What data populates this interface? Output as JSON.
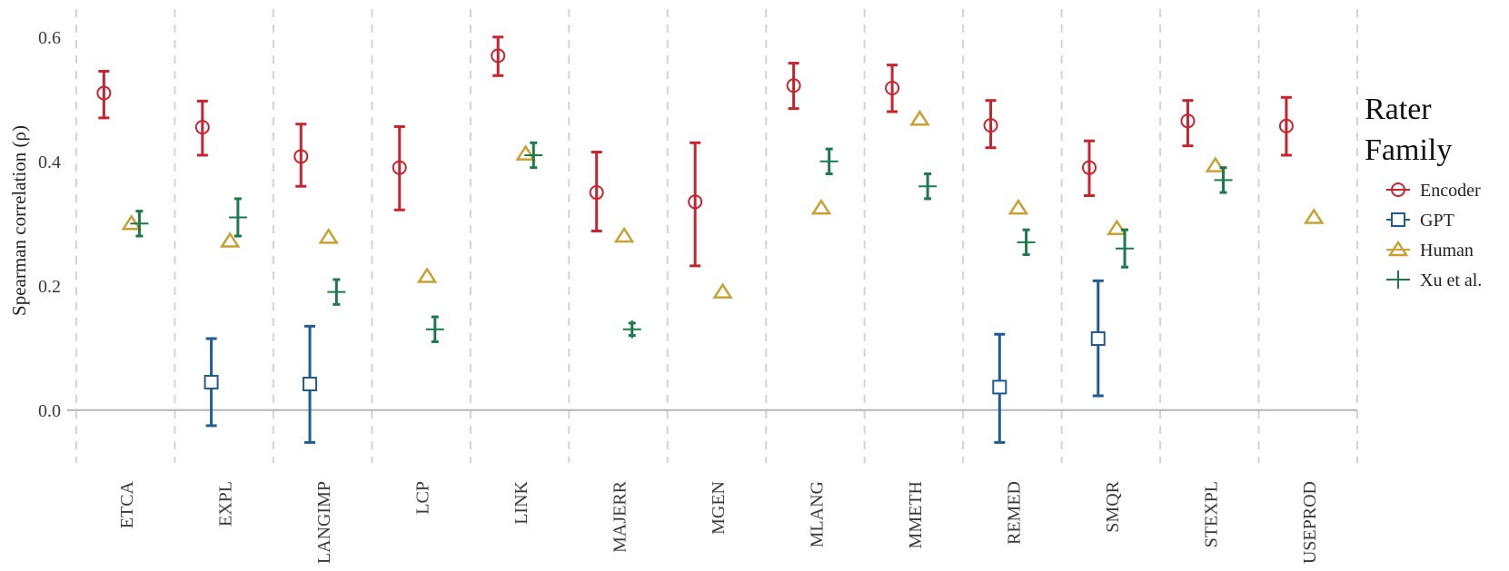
{
  "chart_data": {
    "type": "scatter",
    "ylabel": "Spearman correlation (ρ)",
    "xlabel": "",
    "ylim": [
      -0.085,
      0.645
    ],
    "yticks": [
      0.0,
      0.2,
      0.4,
      0.6
    ],
    "ytick_labels": [
      "0.0",
      "0.2",
      "0.4",
      "0.6"
    ],
    "categories": [
      "ETCA",
      "EXPL",
      "LANGIMP",
      "LCP",
      "LINK",
      "MAJERR",
      "MGEN",
      "MLANG",
      "MMETH",
      "REMED",
      "SMQR",
      "STEXPL",
      "USEPROD"
    ],
    "legend": {
      "title_lines": [
        "Rater",
        "Family"
      ],
      "position": "right"
    },
    "series": [
      {
        "name": "Encoder",
        "marker": "circle",
        "color": "#c8242f",
        "points": [
          {
            "category": "ETCA",
            "value": 0.51,
            "low": 0.47,
            "high": 0.545
          },
          {
            "category": "EXPL",
            "value": 0.455,
            "low": 0.41,
            "high": 0.497
          },
          {
            "category": "LANGIMP",
            "value": 0.408,
            "low": 0.36,
            "high": 0.46
          },
          {
            "category": "LCP",
            "value": 0.39,
            "low": 0.322,
            "high": 0.456
          },
          {
            "category": "LINK",
            "value": 0.57,
            "low": 0.538,
            "high": 0.6
          },
          {
            "category": "MAJERR",
            "value": 0.35,
            "low": 0.288,
            "high": 0.415
          },
          {
            "category": "MGEN",
            "value": 0.335,
            "low": 0.232,
            "high": 0.43
          },
          {
            "category": "MLANG",
            "value": 0.522,
            "low": 0.485,
            "high": 0.558
          },
          {
            "category": "MMETH",
            "value": 0.518,
            "low": 0.48,
            "high": 0.555
          },
          {
            "category": "REMED",
            "value": 0.458,
            "low": 0.422,
            "high": 0.498
          },
          {
            "category": "SMQR",
            "value": 0.39,
            "low": 0.345,
            "high": 0.433
          },
          {
            "category": "STEXPL",
            "value": 0.465,
            "low": 0.425,
            "high": 0.498
          },
          {
            "category": "USEPROD",
            "value": 0.457,
            "low": 0.41,
            "high": 0.503
          }
        ]
      },
      {
        "name": "GPT",
        "marker": "square",
        "color": "#1f5b94",
        "points": [
          {
            "category": "EXPL",
            "value": 0.045,
            "low": -0.025,
            "high": 0.115
          },
          {
            "category": "LANGIMP",
            "value": 0.042,
            "low": -0.052,
            "high": 0.135
          },
          {
            "category": "REMED",
            "value": 0.037,
            "low": -0.052,
            "high": 0.122
          },
          {
            "category": "SMQR",
            "value": 0.115,
            "low": 0.023,
            "high": 0.208
          }
        ]
      },
      {
        "name": "Human",
        "marker": "triangle",
        "color": "#c9a132",
        "points": [
          {
            "category": "ETCA",
            "value": 0.3
          },
          {
            "category": "EXPL",
            "value": 0.272
          },
          {
            "category": "LANGIMP",
            "value": 0.278
          },
          {
            "category": "LCP",
            "value": 0.215
          },
          {
            "category": "LINK",
            "value": 0.412
          },
          {
            "category": "MAJERR",
            "value": 0.28
          },
          {
            "category": "MGEN",
            "value": 0.19
          },
          {
            "category": "MLANG",
            "value": 0.325
          },
          {
            "category": "MMETH",
            "value": 0.468
          },
          {
            "category": "REMED",
            "value": 0.325
          },
          {
            "category": "SMQR",
            "value": 0.292
          },
          {
            "category": "STEXPL",
            "value": 0.393
          },
          {
            "category": "USEPROD",
            "value": 0.31
          }
        ]
      },
      {
        "name": "Xu et al.",
        "marker": "plus",
        "color": "#1e7a4a",
        "points": [
          {
            "category": "ETCA",
            "value": 0.3,
            "low": 0.28,
            "high": 0.32
          },
          {
            "category": "EXPL",
            "value": 0.31,
            "low": 0.28,
            "high": 0.34
          },
          {
            "category": "LANGIMP",
            "value": 0.19,
            "low": 0.17,
            "high": 0.21
          },
          {
            "category": "LCP",
            "value": 0.13,
            "low": 0.11,
            "high": 0.15
          },
          {
            "category": "LINK",
            "value": 0.41,
            "low": 0.39,
            "high": 0.43
          },
          {
            "category": "MAJERR",
            "value": 0.13,
            "low": 0.12,
            "high": 0.14
          },
          {
            "category": "MLANG",
            "value": 0.4,
            "low": 0.38,
            "high": 0.42
          },
          {
            "category": "MMETH",
            "value": 0.36,
            "low": 0.34,
            "high": 0.38
          },
          {
            "category": "REMED",
            "value": 0.27,
            "low": 0.25,
            "high": 0.29
          },
          {
            "category": "SMQR",
            "value": 0.26,
            "low": 0.23,
            "high": 0.29
          },
          {
            "category": "STEXPL",
            "value": 0.37,
            "low": 0.35,
            "high": 0.39
          }
        ]
      }
    ]
  }
}
